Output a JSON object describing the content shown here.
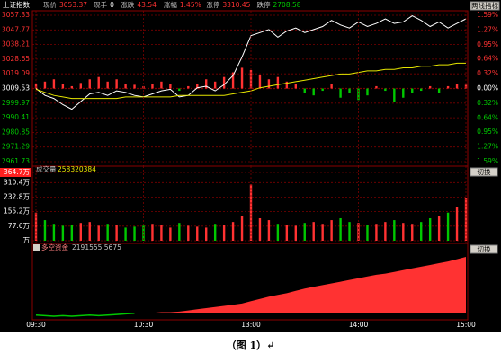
{
  "header": {
    "symbol": "上证指数",
    "button": "两线指标",
    "fields": [
      {
        "label": "现价",
        "value": "3053.37"
      },
      {
        "label": "现手",
        "value": "0"
      },
      {
        "label": "涨跌",
        "value": "43.54"
      },
      {
        "label": "涨幅",
        "value": "1.45%"
      },
      {
        "label": "涨停",
        "value": "3310.45"
      },
      {
        "label": "跌停",
        "value": "2708.58"
      }
    ]
  },
  "chart_data": [
    {
      "type": "line",
      "x": [
        0,
        5,
        10,
        15,
        20,
        25,
        30,
        35,
        40,
        45,
        50,
        55,
        60,
        65,
        70,
        75,
        80,
        85,
        90,
        95,
        100,
        105,
        110,
        115,
        120,
        125,
        130,
        135,
        140,
        145,
        150,
        155,
        160,
        165,
        170,
        175,
        180,
        185,
        190,
        195,
        200,
        205,
        210,
        215,
        220,
        225,
        230,
        235,
        240
      ],
      "xlim": [
        0,
        240
      ],
      "ylim": [
        2961.73,
        3057.33
      ],
      "yticks": [
        3057.33,
        3047.77,
        3038.21,
        3028.65,
        3019.09,
        3009.53,
        2999.97,
        2990.41,
        2980.85,
        2971.29,
        2961.73
      ],
      "y2lim": [
        -1.59,
        1.59
      ],
      "y2ticks": [
        {
          "value": 1.59,
          "label": "1.59%"
        },
        {
          "value": 1.27,
          "label": "1.27%"
        },
        {
          "value": 0.95,
          "label": "0.95%"
        },
        {
          "value": 0.64,
          "label": "0.64%"
        },
        {
          "value": 0.32,
          "label": "0.32%"
        },
        {
          "value": 0,
          "label": "0.00%"
        },
        {
          "value": -0.32,
          "label": "0.32%"
        },
        {
          "value": -0.64,
          "label": "0.64%"
        },
        {
          "value": -0.95,
          "label": "0.95%"
        },
        {
          "value": -1.27,
          "label": "1.27%"
        },
        {
          "value": -1.59,
          "label": "1.59%"
        }
      ],
      "grid": true,
      "up_color": "#ff3232",
      "down_color": "#00c800",
      "bars": [
        0.1,
        0.15,
        0.2,
        0.1,
        0.05,
        0.12,
        0.2,
        0.25,
        0.15,
        0.2,
        0.1,
        0.08,
        0.05,
        0.1,
        0.15,
        0.1,
        -0.05,
        0.05,
        0.1,
        0.2,
        0.15,
        0.25,
        0.35,
        0.45,
        0.4,
        0.3,
        0.2,
        0.25,
        0.15,
        0.1,
        -0.1,
        -0.15,
        -0.05,
        0.1,
        -0.2,
        -0.1,
        -0.25,
        -0.15,
        0.05,
        -0.05,
        -0.3,
        -0.2,
        -0.1,
        -0.05,
        0.05,
        -0.1,
        0.05,
        0.1,
        0.08
      ],
      "series": [
        {
          "color": "#ffffff",
          "values": [
            3009.5,
            3005,
            3003,
            2999,
            2996,
            3001,
            3006,
            3007,
            3005,
            3008,
            3007,
            3005,
            3004,
            3006,
            3008,
            3009,
            3004,
            3005,
            3010,
            3011,
            3008,
            3012,
            3018,
            3030,
            3044,
            3046,
            3048,
            3043,
            3047,
            3049,
            3046,
            3048,
            3050,
            3054,
            3051,
            3049,
            3053,
            3050,
            3052,
            3055,
            3052,
            3053,
            3057,
            3054,
            3050,
            3053,
            3049,
            3052,
            3055
          ]
        },
        {
          "color": "#e6e600",
          "values": [
            3009,
            3007,
            3005,
            3004,
            3003,
            3003,
            3003,
            3003,
            3003,
            3003,
            3004,
            3004,
            3004,
            3004,
            3004,
            3004,
            3005,
            3005,
            3005,
            3005,
            3005,
            3005,
            3006,
            3007,
            3008,
            3010,
            3011,
            3012,
            3013,
            3014,
            3015,
            3016,
            3017,
            3018,
            3019,
            3019,
            3020,
            3021,
            3021,
            3022,
            3022,
            3023,
            3023,
            3024,
            3024,
            3025,
            3025,
            3026,
            3026
          ]
        }
      ]
    },
    {
      "type": "bar",
      "title": "成交量",
      "subtitle": "258320384",
      "button": "切换",
      "x": [
        0,
        5,
        10,
        15,
        20,
        25,
        30,
        35,
        40,
        45,
        50,
        55,
        60,
        65,
        70,
        75,
        80,
        85,
        90,
        95,
        100,
        105,
        110,
        115,
        120,
        125,
        130,
        135,
        140,
        145,
        150,
        155,
        160,
        165,
        170,
        175,
        180,
        185,
        190,
        195,
        200,
        205,
        210,
        215,
        220,
        225,
        230,
        235,
        240
      ],
      "xlim": [
        0,
        240
      ],
      "ylim": [
        0,
        364.7
      ],
      "yticks": [
        {
          "value": 364.7,
          "label": "364.7万"
        },
        {
          "value": 310.4,
          "label": "310.4万"
        },
        {
          "value": 232.8,
          "label": "232.8万"
        },
        {
          "value": 155.2,
          "label": "155.2万"
        },
        {
          "value": 77.6,
          "label": "77.6万"
        },
        {
          "value": 0,
          "label": "万"
        }
      ],
      "up_color": "#ff3232",
      "down_color": "#00c800",
      "values": [
        150,
        110,
        90,
        80,
        85,
        95,
        100,
        80,
        90,
        85,
        70,
        75,
        80,
        90,
        85,
        70,
        95,
        80,
        75,
        70,
        90,
        85,
        100,
        130,
        300,
        120,
        110,
        90,
        85,
        80,
        95,
        100,
        90,
        110,
        120,
        100,
        95,
        85,
        90,
        100,
        110,
        95,
        90,
        100,
        120,
        130,
        150,
        180,
        230
      ]
    },
    {
      "type": "area",
      "title": "多空资金",
      "subtitle": "2191555.5675",
      "button": "切换",
      "x": [
        0,
        5,
        10,
        15,
        20,
        25,
        30,
        35,
        40,
        45,
        50,
        55,
        60,
        65,
        70,
        75,
        80,
        85,
        90,
        95,
        100,
        105,
        110,
        115,
        120,
        125,
        130,
        135,
        140,
        145,
        150,
        155,
        160,
        165,
        170,
        175,
        180,
        185,
        190,
        195,
        200,
        205,
        210,
        215,
        220,
        225,
        230,
        235,
        240
      ],
      "xlim": [
        0,
        240
      ],
      "xticks": [
        {
          "value": 0,
          "label": "09:30"
        },
        {
          "value": 60,
          "label": "10:30"
        },
        {
          "value": 120,
          "label": "13:00"
        },
        {
          "value": 180,
          "label": "14:00"
        },
        {
          "value": 240,
          "label": "15:00"
        }
      ],
      "up_color": "#ff3232",
      "down_color": "#00c800",
      "values": [
        -4,
        -5,
        -6,
        -5,
        -6,
        -5,
        -4,
        -5,
        -4,
        -3,
        -2,
        -1,
        0,
        0,
        1,
        1,
        2,
        4,
        6,
        8,
        10,
        12,
        14,
        16,
        20,
        24,
        28,
        31,
        34,
        38,
        42,
        45,
        48,
        51,
        54,
        57,
        60,
        63,
        66,
        68,
        71,
        74,
        77,
        80,
        83,
        86,
        89,
        93,
        97
      ]
    }
  ],
  "caption": "（图 1）↵"
}
